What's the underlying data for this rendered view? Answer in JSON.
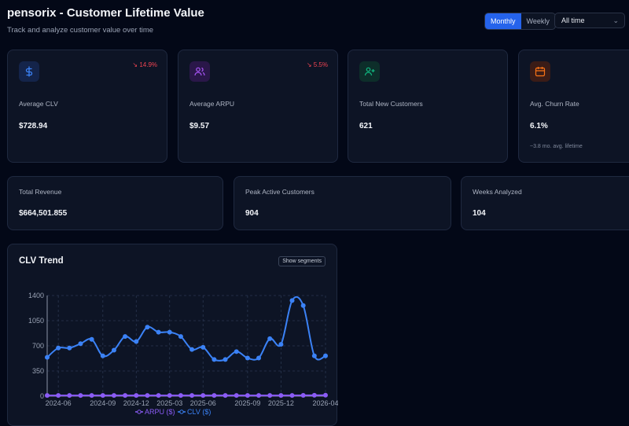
{
  "header": {
    "title": "pensorix - Customer Lifetime Value",
    "subtitle": "Track and analyze customer value over time",
    "period_options": [
      "Monthly",
      "Weekly"
    ],
    "active_period": "Monthly",
    "range_select": "All time"
  },
  "kpis": [
    {
      "label": "Average CLV",
      "value": "$728.94",
      "trend": "↘ 14.9%",
      "icon": "dollar-icon"
    },
    {
      "label": "Average ARPU",
      "value": "$9.57",
      "trend": "↘ 5.5%",
      "icon": "users-icon"
    },
    {
      "label": "Total New Customers",
      "value": "621",
      "icon": "user-plus-icon"
    },
    {
      "label": "Avg. Churn Rate",
      "value": "6.1%",
      "note": "~3.8 mo. avg. lifetime",
      "icon": "calendar-icon"
    }
  ],
  "stats": [
    {
      "label": "Total Revenue",
      "value": "$664,501.855"
    },
    {
      "label": "Peak Active Customers",
      "value": "904"
    },
    {
      "label": "Weeks Analyzed",
      "value": "104"
    }
  ],
  "colors": {
    "accent": "#2563eb",
    "trend_down": "#f04452",
    "clv_line": "#3b82f6",
    "arpu_line": "#8b5cf6",
    "icon_dollar": "#3b82f6",
    "icon_users": "#a855f7",
    "icon_user_plus": "#10b981",
    "icon_calendar": "#f97316"
  },
  "chart_panel": {
    "title": "CLV Trend",
    "segments_button": "Show segments"
  },
  "chart_data": {
    "type": "line",
    "x": [
      "2024-05",
      "2024-06",
      "2024-07",
      "2024-07",
      "2024-08",
      "2024-09",
      "2024-10",
      "2024-11",
      "2024-12",
      "2025-01",
      "2025-02",
      "2025-03",
      "2025-04",
      "2025-05",
      "2025-06",
      "2025-07",
      "2025-07",
      "2025-08",
      "2025-09",
      "2025-10",
      "2025-11",
      "2025-12",
      "2026-01",
      "2026-02",
      "2026-03",
      "2026-04"
    ],
    "x_ticks": [
      "2024-06",
      "2024-09",
      "2024-12",
      "2025-03",
      "2025-06",
      "2025-09",
      "2025-12",
      "2026-04"
    ],
    "y_ticks": [
      0,
      350,
      700,
      1050,
      1400
    ],
    "ylim": [
      0,
      1400
    ],
    "grid": true,
    "legend_position": "bottom",
    "series": [
      {
        "name": "ARPU ($)",
        "values": [
          9,
          9,
          9,
          9,
          9,
          9,
          9,
          9,
          9,
          9,
          9,
          9,
          9,
          9,
          9,
          9,
          9,
          9,
          9,
          9,
          9,
          9,
          10,
          11,
          12,
          13
        ]
      },
      {
        "name": "CLV ($)",
        "values": [
          540,
          670,
          670,
          730,
          790,
          560,
          640,
          830,
          760,
          960,
          890,
          890,
          830,
          650,
          680,
          510,
          510,
          620,
          530,
          530,
          800,
          720,
          1330,
          1260,
          560,
          560
        ]
      }
    ]
  }
}
